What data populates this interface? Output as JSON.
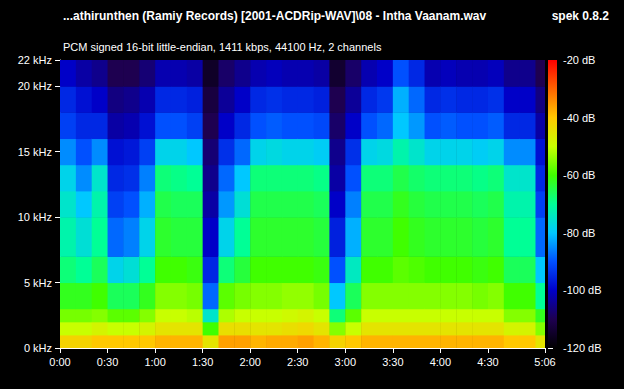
{
  "chart_data": {
    "type": "spectrogram",
    "title": "...athirunthen (Ramiy Records) [2001-ACDRip-WAV]\\08 - Intha Vaanam.wav",
    "subtitle": "PCM signed 16-bit little-endian, 1411 kbps, 44100 Hz, 2 channels",
    "annotations": [
      "spek 0.8.2"
    ],
    "grid": false,
    "xlim": [
      0,
      306
    ],
    "xticks": [
      {
        "value": 0,
        "label": "0:00"
      },
      {
        "value": 30,
        "label": "0:30"
      },
      {
        "value": 60,
        "label": "1:00"
      },
      {
        "value": 90,
        "label": "1:30"
      },
      {
        "value": 120,
        "label": "2:00"
      },
      {
        "value": 150,
        "label": "2:30"
      },
      {
        "value": 180,
        "label": "3:00"
      },
      {
        "value": 210,
        "label": "3:30"
      },
      {
        "value": 240,
        "label": "4:00"
      },
      {
        "value": 270,
        "label": "4:30"
      },
      {
        "value": 306,
        "label": "5:06"
      }
    ],
    "ylim": [
      0,
      22
    ],
    "yticks": [
      {
        "value": 0,
        "label": "0 kHz"
      },
      {
        "value": 5,
        "label": "5 kHz"
      },
      {
        "value": 10,
        "label": "10 kHz"
      },
      {
        "value": 15,
        "label": "15 kHz"
      },
      {
        "value": 20,
        "label": "20 kHz"
      },
      {
        "value": 22,
        "label": "22 kHz"
      }
    ],
    "time_edges": [
      0,
      10,
      20,
      30,
      40,
      50,
      60,
      70,
      80,
      90,
      100,
      110,
      120,
      130,
      140,
      150,
      160,
      170,
      180,
      190,
      200,
      210,
      220,
      230,
      240,
      250,
      260,
      270,
      280,
      290,
      300,
      306
    ],
    "freq_edges": [
      0,
      1,
      2,
      3,
      5,
      7,
      10,
      12,
      14,
      16,
      18,
      20,
      22
    ],
    "levels_db": [
      [
        -42,
        -50,
        -56,
        -62,
        -68,
        -72,
        -75,
        -78,
        -85,
        -92,
        -95,
        -100
      ],
      [
        -42,
        -50,
        -56,
        -62,
        -70,
        -76,
        -80,
        -85,
        -90,
        -95,
        -98,
        -103
      ],
      [
        -40,
        -48,
        -55,
        -60,
        -66,
        -70,
        -72,
        -75,
        -85,
        -95,
        -100,
        -105
      ],
      [
        -40,
        -50,
        -58,
        -66,
        -78,
        -88,
        -92,
        -95,
        -98,
        -103,
        -106,
        -110
      ],
      [
        -40,
        -50,
        -58,
        -66,
        -76,
        -86,
        -90,
        -94,
        -97,
        -102,
        -105,
        -110
      ],
      [
        -40,
        -48,
        -55,
        -62,
        -70,
        -78,
        -82,
        -86,
        -92,
        -98,
        -102,
        -107
      ],
      [
        -38,
        -45,
        -50,
        -55,
        -60,
        -63,
        -65,
        -68,
        -78,
        -90,
        -95,
        -102
      ],
      [
        -38,
        -45,
        -50,
        -55,
        -60,
        -64,
        -66,
        -69,
        -78,
        -90,
        -95,
        -102
      ],
      [
        -38,
        -45,
        -51,
        -56,
        -61,
        -64,
        -66,
        -70,
        -80,
        -92,
        -96,
        -103
      ],
      [
        -45,
        -60,
        -75,
        -88,
        -95,
        -100,
        -103,
        -105,
        -107,
        -110,
        -112,
        -115
      ],
      [
        -36,
        -44,
        -52,
        -58,
        -68,
        -78,
        -84,
        -88,
        -94,
        -100,
        -104,
        -108
      ],
      [
        -36,
        -44,
        -50,
        -56,
        -64,
        -70,
        -76,
        -80,
        -88,
        -95,
        -100,
        -105
      ],
      [
        -38,
        -45,
        -50,
        -55,
        -60,
        -63,
        -65,
        -68,
        -78,
        -90,
        -95,
        -102
      ],
      [
        -37,
        -45,
        -50,
        -55,
        -60,
        -63,
        -65,
        -68,
        -77,
        -89,
        -94,
        -101
      ],
      [
        -37,
        -44,
        -49,
        -54,
        -60,
        -63,
        -65,
        -68,
        -78,
        -90,
        -95,
        -102
      ],
      [
        -36,
        -43,
        -48,
        -54,
        -60,
        -63,
        -65,
        -68,
        -78,
        -90,
        -95,
        -102
      ],
      [
        -38,
        -45,
        -50,
        -56,
        -61,
        -64,
        -66,
        -69,
        -79,
        -91,
        -96,
        -103
      ],
      [
        -42,
        -55,
        -68,
        -80,
        -90,
        -96,
        -100,
        -103,
        -105,
        -108,
        -110,
        -114
      ],
      [
        -40,
        -50,
        -58,
        -66,
        -74,
        -82,
        -86,
        -90,
        -94,
        -100,
        -104,
        -108
      ],
      [
        -38,
        -45,
        -50,
        -55,
        -60,
        -63,
        -65,
        -68,
        -78,
        -90,
        -95,
        -102
      ],
      [
        -38,
        -45,
        -50,
        -55,
        -60,
        -63,
        -65,
        -68,
        -77,
        -88,
        -93,
        -100
      ],
      [
        -38,
        -45,
        -50,
        -55,
        -58,
        -60,
        -62,
        -65,
        -72,
        -80,
        -82,
        -90
      ],
      [
        -38,
        -45,
        -50,
        -55,
        -59,
        -62,
        -64,
        -67,
        -75,
        -84,
        -88,
        -95
      ],
      [
        -38,
        -45,
        -50,
        -55,
        -60,
        -63,
        -65,
        -68,
        -78,
        -90,
        -95,
        -102
      ],
      [
        -38,
        -45,
        -50,
        -55,
        -60,
        -63,
        -65,
        -68,
        -78,
        -89,
        -94,
        -101
      ],
      [
        -38,
        -45,
        -50,
        -55,
        -60,
        -63,
        -65,
        -68,
        -78,
        -90,
        -95,
        -102
      ],
      [
        -38,
        -45,
        -50,
        -56,
        -61,
        -64,
        -66,
        -69,
        -79,
        -90,
        -95,
        -102
      ],
      [
        -38,
        -45,
        -50,
        -55,
        -60,
        -63,
        -65,
        -68,
        -78,
        -89,
        -94,
        -101
      ],
      [
        -40,
        -48,
        -55,
        -60,
        -66,
        -70,
        -72,
        -75,
        -85,
        -95,
        -100,
        -105
      ],
      [
        -40,
        -48,
        -55,
        -60,
        -66,
        -70,
        -72,
        -75,
        -85,
        -95,
        -100,
        -105
      ],
      [
        -45,
        -55,
        -62,
        -70,
        -80,
        -88,
        -92,
        -95,
        -98,
        -103,
        -106,
        -110
      ]
    ],
    "colorbar": {
      "range": [
        -120,
        -20
      ],
      "ticks": [
        {
          "value": -20,
          "label": "-20 dB"
        },
        {
          "value": -40,
          "label": "-40 dB"
        },
        {
          "value": -60,
          "label": "-60 dB"
        },
        {
          "value": -80,
          "label": "-80 dB"
        },
        {
          "value": -100,
          "label": "-100 dB"
        },
        {
          "value": -120,
          "label": "-120 dB"
        }
      ]
    }
  }
}
